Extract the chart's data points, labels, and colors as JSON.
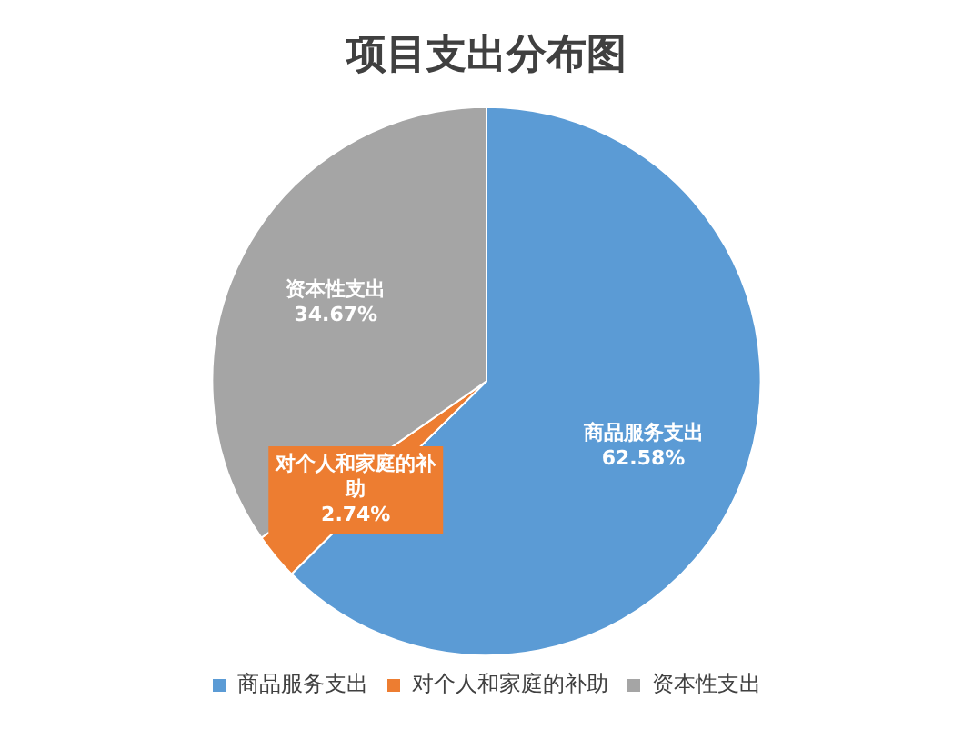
{
  "chart_data": {
    "type": "pie",
    "title": "项目支出分布图",
    "categories": [
      "商品服务支出",
      "对个人和家庭的补助",
      "资本性支出"
    ],
    "values": [
      62.58,
      2.74,
      34.67
    ],
    "colors": [
      "#5b9bd5",
      "#ed7d31",
      "#a5a5a5"
    ],
    "value_labels": [
      "62.58%",
      "2.74%",
      "34.67%"
    ],
    "legend": "bottom"
  }
}
